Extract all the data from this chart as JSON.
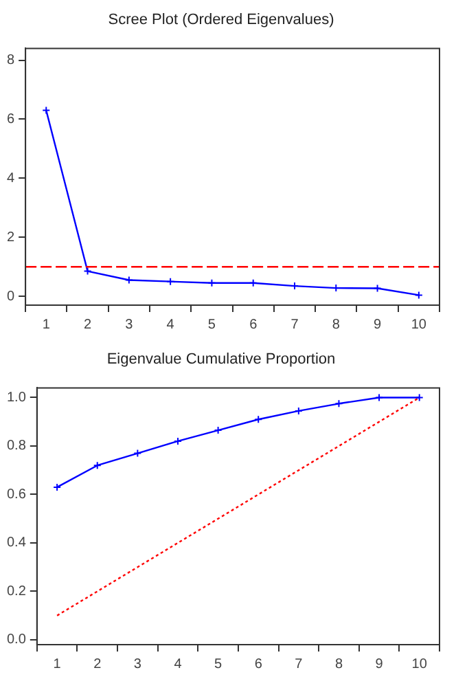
{
  "chart_data": [
    {
      "type": "line",
      "title": "Scree Plot (Ordered Eigenvalues)",
      "categories": [
        "1",
        "2",
        "3",
        "4",
        "5",
        "6",
        "7",
        "8",
        "9",
        "10"
      ],
      "ylim": [
        -0.3,
        8.4
      ],
      "yticks": [
        0,
        2,
        4,
        6,
        8
      ],
      "grid": false,
      "legend": false,
      "marker": "cross",
      "line_style": "solid",
      "series": [
        {
          "color": "#0000ff",
          "values": [
            6.3,
            0.85,
            0.55,
            0.5,
            0.45,
            0.45,
            0.35,
            0.28,
            0.27,
            0.04
          ]
        }
      ],
      "ref_lines": [
        {
          "axis": "y",
          "value": 1,
          "color": "#ff0000",
          "line_style": "dashed"
        }
      ]
    },
    {
      "type": "line",
      "title": "Eigenvalue Cumulative Proportion",
      "categories": [
        "1",
        "2",
        "3",
        "4",
        "5",
        "6",
        "7",
        "8",
        "9",
        "10"
      ],
      "ylim": [
        -0.02,
        1.04
      ],
      "yticks": [
        {
          "value": 0,
          "label": "0.0"
        },
        0.2,
        0.4,
        0.6,
        0.8,
        {
          "value": 1,
          "label": "1.0"
        }
      ],
      "grid": false,
      "legend": false,
      "series": [
        {
          "color": "#0000ff",
          "values": [
            0.63,
            0.72,
            0.77,
            0.82,
            0.865,
            0.91,
            0.945,
            0.975,
            1.0,
            1.0
          ],
          "marker": "cross",
          "line_style": "solid"
        },
        {
          "color": "#ff0000",
          "values": [
            0.1,
            0.2,
            0.3,
            0.4,
            0.5,
            0.6,
            0.7,
            0.8,
            0.9,
            1.0
          ],
          "marker": "none",
          "line_style": "dotted"
        }
      ]
    }
  ]
}
